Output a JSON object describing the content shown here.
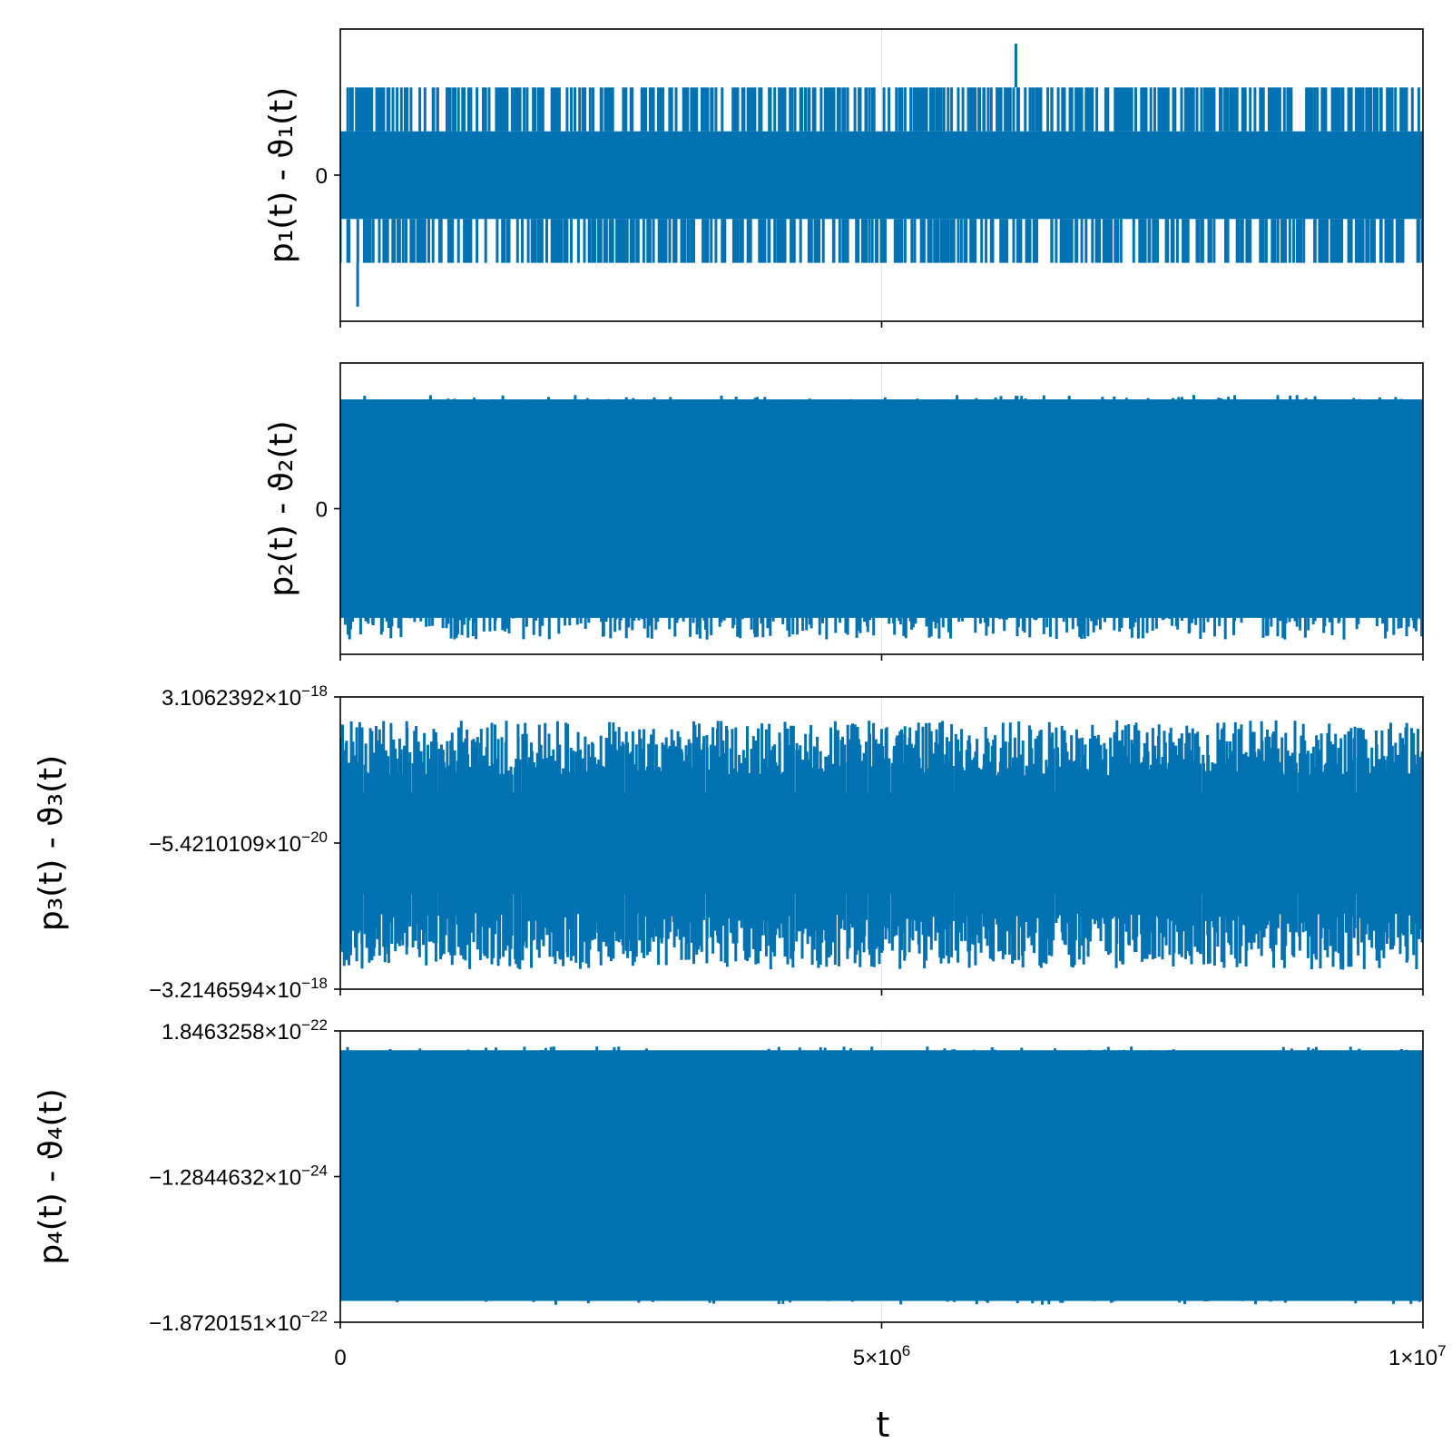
{
  "chart_data": [
    {
      "type": "line",
      "ylabel": "p₁(t) - ϑ₁(t)",
      "yticks": [
        {
          "value": 0,
          "mantissa": "0",
          "exp": ""
        }
      ],
      "xlim": [
        0,
        10000000
      ],
      "ylim": [
        -1.0,
        1.0
      ],
      "series": [
        {
          "color": "#0072b2",
          "center": 0,
          "core": 0.3,
          "steps": [
            0.6,
            -0.6
          ],
          "spikes": [
            0.9,
            -0.9
          ]
        }
      ]
    },
    {
      "type": "line",
      "ylabel": "p₂(t) - ϑ₂(t)",
      "yticks": [
        {
          "value": 0,
          "mantissa": "0",
          "exp": ""
        }
      ],
      "xlim": [
        0,
        10000000
      ],
      "ylim": [
        -1.0,
        1.0
      ],
      "series": [
        {
          "color": "#0072b2",
          "center": 0,
          "core": 0.75,
          "band": [
            0.78,
            -0.9
          ]
        }
      ]
    },
    {
      "type": "line",
      "ylabel": "p₃(t) - ϑ₃(t)",
      "yticks": [
        {
          "value": 3.1062392e-18,
          "mantissa": "3.1062392×10",
          "exp": "−18"
        },
        {
          "value": -5.4210109e-20,
          "mantissa": "−5.4210109×10",
          "exp": "−20"
        },
        {
          "value": -3.2146594e-18,
          "mantissa": "−3.2146594×10",
          "exp": "−18"
        }
      ],
      "xlim": [
        0,
        10000000
      ],
      "ylim": [
        -3.2146594e-18,
        3.1062392e-18
      ],
      "series": [
        {
          "color": "#0072b2",
          "center": -5.4210109e-20,
          "core": 1.1e-18,
          "band": [
            2.6e-18,
            -2.8e-18
          ]
        }
      ]
    },
    {
      "type": "line",
      "ylabel": "p₄(t) - ϑ₄(t)",
      "yticks": [
        {
          "value": 1.8463258e-22,
          "mantissa": "1.8463258×10",
          "exp": "−22"
        },
        {
          "value": -1.2844632e-24,
          "mantissa": "−1.2844632×10",
          "exp": "−24"
        },
        {
          "value": -1.8720151e-22,
          "mantissa": "−1.8720151×10",
          "exp": "−22"
        }
      ],
      "xlim": [
        0,
        10000000
      ],
      "ylim": [
        -1.8720151e-22,
        1.8463258e-22
      ],
      "series": [
        {
          "color": "#0072b2",
          "center": 0,
          "core": 1.6e-22,
          "band": [
            1.65e-22,
            -1.65e-22
          ]
        }
      ]
    }
  ],
  "xaxis": {
    "label": "t",
    "ticks": [
      {
        "value": 0,
        "mantissa": "0",
        "exp": ""
      },
      {
        "value": 5000000,
        "mantissa": "5×10",
        "exp": "6"
      },
      {
        "value": 10000000,
        "mantissa": "1×10",
        "exp": "7"
      }
    ]
  }
}
